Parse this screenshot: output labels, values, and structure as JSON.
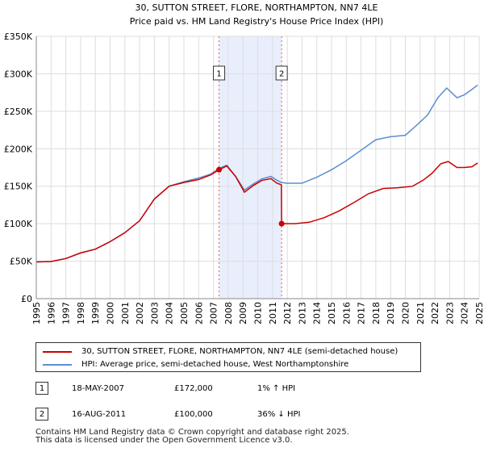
{
  "chart_data": {
    "type": "line",
    "title": "30, SUTTON STREET, FLORE, NORTHAMPTON, NN7 4LE",
    "subtitle": "Price paid vs. HM Land Registry's House Price Index (HPI)",
    "xlabel": "",
    "ylabel": "",
    "xlim": [
      1995,
      2025
    ],
    "ylim": [
      0,
      350000
    ],
    "x_ticks": [
      1995,
      1996,
      1997,
      1998,
      1999,
      2000,
      2001,
      2002,
      2003,
      2004,
      2005,
      2006,
      2007,
      2008,
      2009,
      2010,
      2011,
      2012,
      2013,
      2014,
      2015,
      2016,
      2017,
      2018,
      2019,
      2020,
      2021,
      2022,
      2023,
      2024,
      2025
    ],
    "y_ticks": [
      0,
      50000,
      100000,
      150000,
      200000,
      250000,
      300000,
      350000
    ],
    "y_tick_labels": [
      "£0",
      "£50K",
      "£100K",
      "£150K",
      "£200K",
      "£250K",
      "£300K",
      "£350K"
    ],
    "grid": true,
    "series": [
      {
        "name": "hpi",
        "color": "#5b8fd0",
        "points": [
          [
            1995.0,
            49000
          ],
          [
            1996.0,
            49500
          ],
          [
            1997.0,
            53500
          ],
          [
            1998.0,
            61000
          ],
          [
            1999.0,
            66000
          ],
          [
            2000.0,
            76000
          ],
          [
            2001.0,
            88000
          ],
          [
            2002.0,
            104000
          ],
          [
            2003.0,
            133000
          ],
          [
            2004.0,
            150000
          ],
          [
            2005.0,
            156000
          ],
          [
            2006.0,
            161000
          ],
          [
            2006.8,
            166000
          ],
          [
            2007.4,
            174000
          ],
          [
            2007.9,
            178000
          ],
          [
            2008.5,
            163000
          ],
          [
            2009.1,
            145000
          ],
          [
            2009.7,
            153000
          ],
          [
            2010.3,
            160000
          ],
          [
            2010.9,
            163000
          ],
          [
            2011.3,
            158000
          ],
          [
            2011.6,
            155000
          ],
          [
            2012.0,
            154000
          ],
          [
            2013.0,
            154000
          ],
          [
            2014.0,
            162000
          ],
          [
            2015.0,
            172000
          ],
          [
            2016.0,
            184000
          ],
          [
            2017.0,
            198000
          ],
          [
            2018.0,
            212000
          ],
          [
            2019.0,
            216000
          ],
          [
            2020.0,
            218000
          ],
          [
            2020.8,
            232000
          ],
          [
            2021.5,
            245000
          ],
          [
            2022.2,
            268000
          ],
          [
            2022.8,
            281000
          ],
          [
            2023.5,
            268000
          ],
          [
            2024.0,
            272000
          ],
          [
            2024.5,
            279000
          ],
          [
            2024.9,
            285000
          ]
        ]
      },
      {
        "name": "price_paid",
        "color": "#cc0000",
        "points": [
          [
            1995.0,
            49000
          ],
          [
            1996.0,
            49500
          ],
          [
            1997.0,
            53500
          ],
          [
            1998.0,
            61000
          ],
          [
            1999.0,
            66000
          ],
          [
            2000.0,
            76000
          ],
          [
            2001.0,
            88000
          ],
          [
            2002.0,
            104000
          ],
          [
            2003.0,
            133000
          ],
          [
            2004.0,
            150000
          ],
          [
            2005.0,
            155000
          ],
          [
            2006.0,
            159000
          ],
          [
            2006.8,
            165000
          ],
          [
            2007.38,
            172000
          ],
          [
            2007.9,
            177000
          ],
          [
            2008.5,
            163000
          ],
          [
            2009.1,
            142000
          ],
          [
            2009.7,
            151000
          ],
          [
            2010.3,
            158000
          ],
          [
            2010.9,
            160000
          ],
          [
            2011.3,
            154000
          ],
          [
            2011.6,
            152000
          ],
          [
            2011.62,
            100000
          ],
          [
            2012.5,
            100000
          ],
          [
            2013.5,
            102000
          ],
          [
            2014.5,
            108000
          ],
          [
            2015.5,
            117000
          ],
          [
            2016.5,
            128000
          ],
          [
            2017.5,
            140000
          ],
          [
            2018.5,
            147000
          ],
          [
            2019.5,
            148000
          ],
          [
            2020.5,
            150000
          ],
          [
            2021.2,
            158000
          ],
          [
            2021.8,
            167000
          ],
          [
            2022.4,
            180000
          ],
          [
            2022.9,
            183000
          ],
          [
            2023.5,
            175000
          ],
          [
            2024.0,
            175000
          ],
          [
            2024.5,
            176000
          ],
          [
            2024.9,
            181000
          ]
        ]
      }
    ],
    "markers": [
      {
        "label": "1",
        "x": 2007.38,
        "y": 172000,
        "band_end": 2011.62
      },
      {
        "label": "2",
        "x": 2011.62,
        "y": 100000
      }
    ],
    "colors": {
      "band": "#e8eefc",
      "vline": "#e06060",
      "grid": "#dddddd"
    }
  },
  "legend": {
    "items": [
      {
        "label": "30, SUTTON STREET, FLORE, NORTHAMPTON, NN7 4LE (semi-detached house)",
        "color": "#cc0000"
      },
      {
        "label": "HPI: Average price, semi-detached house, West Northamptonshire",
        "color": "#5b8fd0"
      }
    ]
  },
  "transactions": [
    {
      "num": "1",
      "date": "18-MAY-2007",
      "price": "£172,000",
      "hpi": "1% ↑ HPI"
    },
    {
      "num": "2",
      "date": "16-AUG-2011",
      "price": "£100,000",
      "hpi": "36% ↓ HPI"
    }
  ],
  "footer": {
    "line1": "Contains HM Land Registry data © Crown copyright and database right 2025.",
    "line2": "This data is licensed under the Open Government Licence v3.0."
  }
}
